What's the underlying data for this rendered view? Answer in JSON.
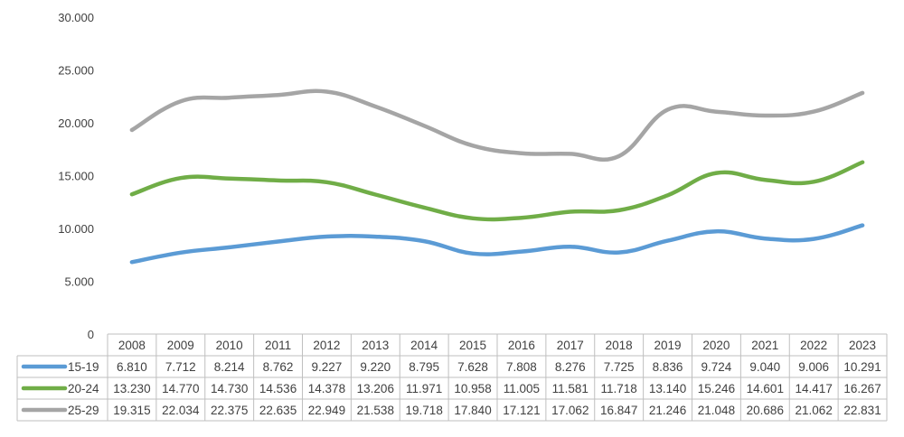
{
  "chart_data": {
    "type": "line",
    "title": "",
    "xlabel": "",
    "ylabel": "",
    "ylim": [
      0,
      30000
    ],
    "y_ticks": [
      "0",
      "5.000",
      "10.000",
      "15.000",
      "20.000",
      "25.000",
      "30.000"
    ],
    "grid": false,
    "legend": "data-table-left",
    "categories": [
      "2008",
      "2009",
      "2010",
      "2011",
      "2012",
      "2013",
      "2014",
      "2015",
      "2016",
      "2017",
      "2018",
      "2019",
      "2020",
      "2021",
      "2022",
      "2023"
    ],
    "series": [
      {
        "name": "15-19",
        "color": "#5b9bd5",
        "values": [
          6810,
          7712,
          8214,
          8762,
          9227,
          9220,
          8795,
          7628,
          7808,
          8276,
          7725,
          8836,
          9724,
          9040,
          9006,
          10291
        ],
        "labels": [
          "6.810",
          "7.712",
          "8.214",
          "8.762",
          "9.227",
          "9.220",
          "8.795",
          "7.628",
          "7.808",
          "8.276",
          "7.725",
          "8.836",
          "9.724",
          "9.040",
          "9.006",
          "10.291"
        ]
      },
      {
        "name": "20-24",
        "color": "#70ad47",
        "values": [
          13230,
          14770,
          14730,
          14536,
          14378,
          13206,
          11971,
          10958,
          11005,
          11581,
          11718,
          13140,
          15246,
          14601,
          14417,
          16267
        ],
        "labels": [
          "13.230",
          "14.770",
          "14.730",
          "14.536",
          "14.378",
          "13.206",
          "11.971",
          "10.958",
          "11.005",
          "11.581",
          "11.718",
          "13.140",
          "15.246",
          "14.601",
          "14.417",
          "16.267"
        ]
      },
      {
        "name": "25-29",
        "color": "#a5a5a5",
        "values": [
          19315,
          22034,
          22375,
          22635,
          22949,
          21538,
          19718,
          17840,
          17121,
          17062,
          16847,
          21246,
          21048,
          20686,
          21062,
          22831
        ],
        "labels": [
          "19.315",
          "22.034",
          "22.375",
          "22.635",
          "22.949",
          "21.538",
          "19.718",
          "17.840",
          "17.121",
          "17.062",
          "16.847",
          "21.246",
          "21.048",
          "20.686",
          "21.062",
          "22.831"
        ]
      }
    ]
  }
}
